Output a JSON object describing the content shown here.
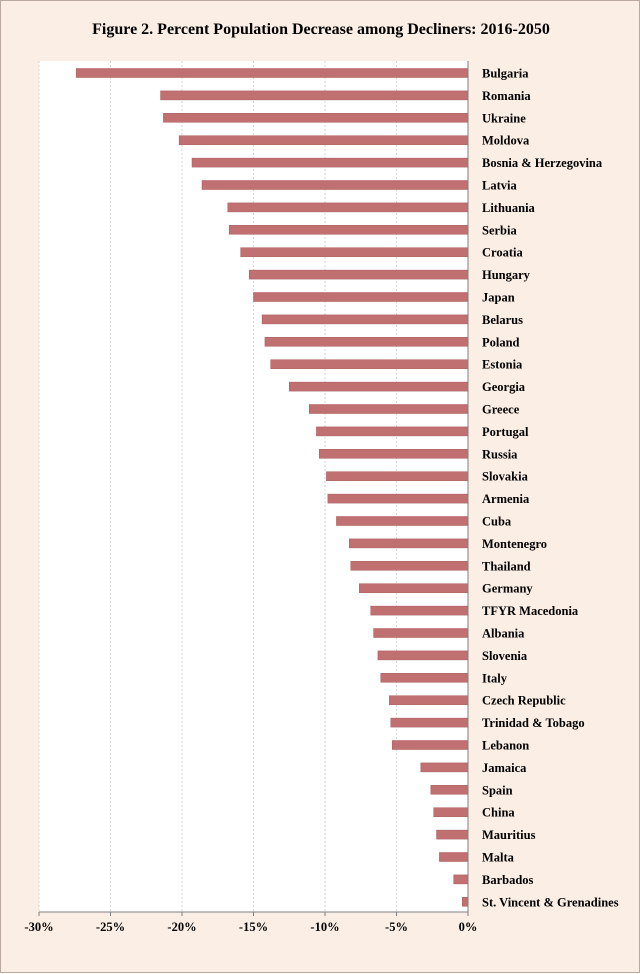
{
  "chart_data": {
    "type": "bar",
    "orientation": "horizontal",
    "title": "Figure 2. Percent Population Decrease among Decliners: 2016-2050",
    "xlabel": "",
    "ylabel": "",
    "xlim": [
      -30,
      0
    ],
    "x_ticks": [
      -30,
      -25,
      -20,
      -15,
      -10,
      -5,
      0
    ],
    "x_tick_labels": [
      "-30%",
      "-25%",
      "-20%",
      "-15%",
      "-10%",
      "-5%",
      "0%"
    ],
    "grid": "vertical",
    "bar_color": "#c07070",
    "categories": [
      "Bulgaria",
      "Romania",
      "Ukraine",
      "Moldova",
      "Bosnia & Herzegovina",
      "Latvia",
      "Lithuania",
      "Serbia",
      "Croatia",
      "Hungary",
      "Japan",
      "Belarus",
      "Poland",
      "Estonia",
      "Georgia",
      "Greece",
      "Portugal",
      "Russia",
      "Slovakia",
      "Armenia",
      "Cuba",
      "Montenegro",
      "Thailand",
      "Germany",
      "TFYR Macedonia",
      "Albania",
      "Slovenia",
      "Italy",
      "Czech Republic",
      "Trinidad & Tobago",
      "Lebanon",
      "Jamaica",
      "Spain",
      "China",
      "Mauritius",
      "Malta",
      "Barbados",
      "St. Vincent & Grenadines"
    ],
    "values": [
      -27.4,
      -21.5,
      -21.3,
      -20.2,
      -19.3,
      -18.6,
      -16.8,
      -16.7,
      -15.9,
      -15.3,
      -15.0,
      -14.4,
      -14.2,
      -13.8,
      -12.5,
      -11.1,
      -10.6,
      -10.4,
      -9.9,
      -9.8,
      -9.2,
      -8.3,
      -8.2,
      -7.6,
      -6.8,
      -6.6,
      -6.3,
      -6.1,
      -5.5,
      -5.4,
      -5.3,
      -3.3,
      -2.6,
      -2.4,
      -2.2,
      -2.0,
      -1.0,
      -0.4
    ]
  }
}
